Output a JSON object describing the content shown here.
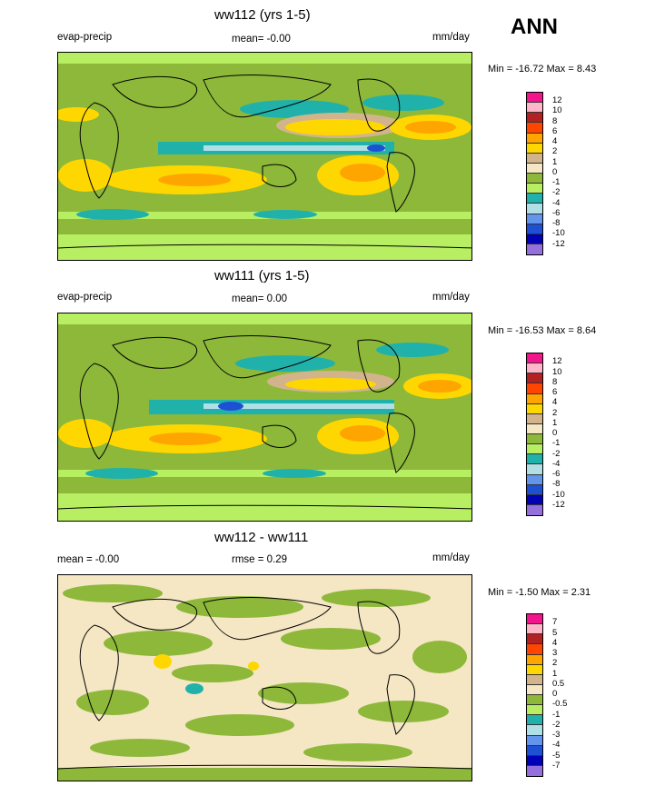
{
  "header": {
    "season": "ANN"
  },
  "panels": [
    {
      "title": "ww112 (yrs 1-5)",
      "left_label": "evap-precip",
      "center_label": "mean=  -0.00",
      "units": "mm/day",
      "minmax": "Min = -16.72 Max =   8.43",
      "colorbar_labels": [
        "12",
        "10",
        "8",
        "6",
        "4",
        "2",
        "1",
        "0",
        "-1",
        "-2",
        "-4",
        "-6",
        "-8",
        "-10",
        "-12"
      ],
      "colorbar_colors": [
        "#f2158c",
        "#ffb6c8",
        "#b22222",
        "#ff4500",
        "#ffa500",
        "#ffd700",
        "#d2b48c",
        "#f5e6c4",
        "#8db83a",
        "#b8ee62",
        "#20b2aa",
        "#b0e0e6",
        "#6495ed",
        "#1e50d4",
        "#0000b4",
        "#9370db"
      ]
    },
    {
      "title": "ww111 (yrs 1-5)",
      "left_label": "evap-precip",
      "center_label": "mean=   0.00",
      "units": "mm/day",
      "minmax": "Min = -16.53 Max =   8.64",
      "colorbar_labels": [
        "12",
        "10",
        "8",
        "6",
        "4",
        "2",
        "1",
        "0",
        "-1",
        "-2",
        "-4",
        "-6",
        "-8",
        "-10",
        "-12"
      ],
      "colorbar_colors": [
        "#f2158c",
        "#ffb6c8",
        "#b22222",
        "#ff4500",
        "#ffa500",
        "#ffd700",
        "#d2b48c",
        "#f5e6c4",
        "#8db83a",
        "#b8ee62",
        "#20b2aa",
        "#b0e0e6",
        "#6495ed",
        "#1e50d4",
        "#0000b4",
        "#9370db"
      ]
    },
    {
      "title": "ww112 - ww111",
      "left_label": "mean =  -0.00",
      "center_label": "rmse =   0.29",
      "units": "mm/day",
      "minmax": "Min =  -1.50 Max =   2.31",
      "colorbar_labels": [
        "7",
        "5",
        "4",
        "3",
        "2",
        "1",
        "0.5",
        "0",
        "-0.5",
        "-1",
        "-2",
        "-3",
        "-4",
        "-5",
        "-7"
      ],
      "colorbar_colors": [
        "#f2158c",
        "#ffb6c8",
        "#b22222",
        "#ff4500",
        "#ffa500",
        "#ffd700",
        "#d2b48c",
        "#f5e6c4",
        "#8db83a",
        "#b8ee62",
        "#20b2aa",
        "#b0e0e6",
        "#6495ed",
        "#1e50d4",
        "#0000b4",
        "#9370db"
      ]
    }
  ]
}
